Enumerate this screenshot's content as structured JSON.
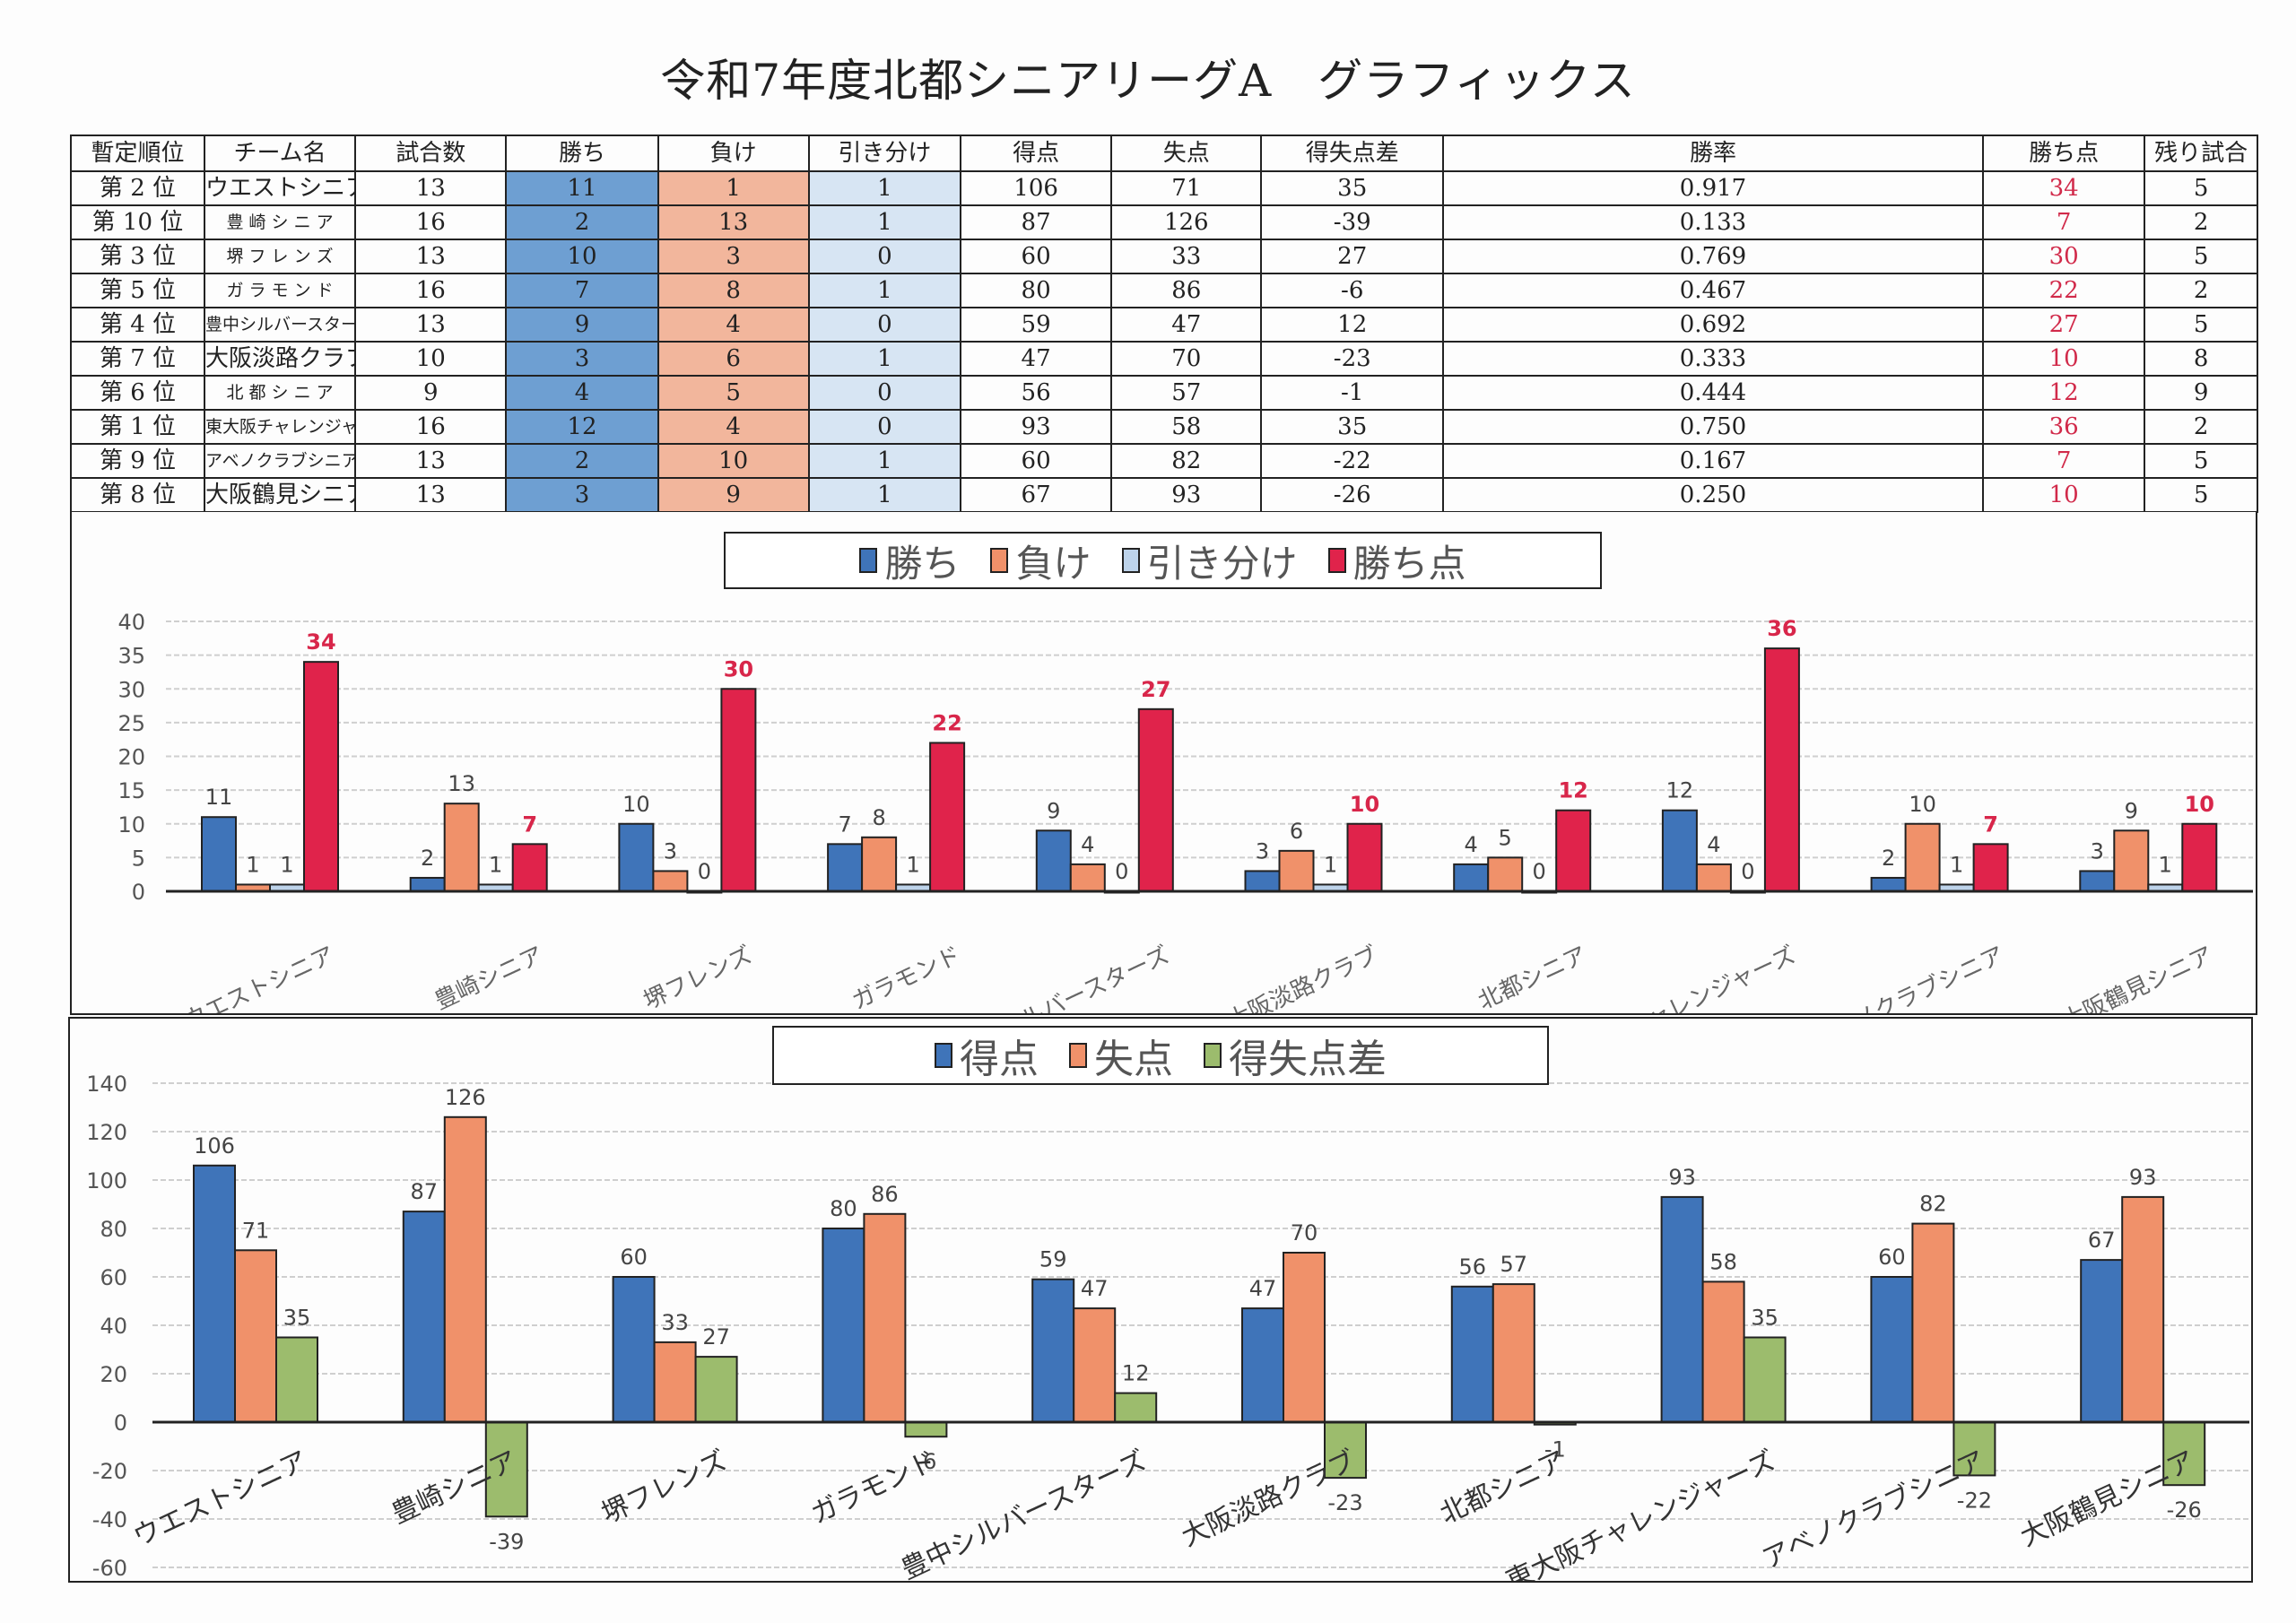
{
  "title": "令和7年度北都シニアリーグA　グラフィックス",
  "table": {
    "headers": [
      "暫定順位",
      "チーム名",
      "試合数",
      "勝ち",
      "負け",
      "引き分け",
      "得点",
      "失点",
      "得失点差",
      "勝率",
      "勝ち点",
      "残り試合"
    ],
    "rows": [
      {
        "rank": "第 2 位",
        "team": "ウエストシニア",
        "games": "13",
        "wins": "11",
        "losses": "1",
        "draws": "1",
        "runs_for": "106",
        "runs_against": "71",
        "diff": "35",
        "pct": "0.917",
        "points": "34",
        "remaining": "5"
      },
      {
        "rank": "第 10 位",
        "team": "豊 崎 シ ニ ア",
        "games": "16",
        "wins": "2",
        "losses": "13",
        "draws": "1",
        "runs_for": "87",
        "runs_against": "126",
        "diff": "-39",
        "pct": "0.133",
        "points": "7",
        "remaining": "2"
      },
      {
        "rank": "第 3 位",
        "team": "堺 フ レ ン ズ",
        "games": "13",
        "wins": "10",
        "losses": "3",
        "draws": "0",
        "runs_for": "60",
        "runs_against": "33",
        "diff": "27",
        "pct": "0.769",
        "points": "30",
        "remaining": "5"
      },
      {
        "rank": "第 5 位",
        "team": "ガ ラ モ ン ド",
        "games": "16",
        "wins": "7",
        "losses": "8",
        "draws": "1",
        "runs_for": "80",
        "runs_against": "86",
        "diff": "-6",
        "pct": "0.467",
        "points": "22",
        "remaining": "2"
      },
      {
        "rank": "第 4 位",
        "team": "豊中シルバースターズ",
        "games": "13",
        "wins": "9",
        "losses": "4",
        "draws": "0",
        "runs_for": "59",
        "runs_against": "47",
        "diff": "12",
        "pct": "0.692",
        "points": "27",
        "remaining": "5"
      },
      {
        "rank": "第 7 位",
        "team": "大阪淡路クラブ",
        "games": "10",
        "wins": "3",
        "losses": "6",
        "draws": "1",
        "runs_for": "47",
        "runs_against": "70",
        "diff": "-23",
        "pct": "0.333",
        "points": "10",
        "remaining": "8"
      },
      {
        "rank": "第 6 位",
        "team": "北 都 シ ニ ア",
        "games": "9",
        "wins": "4",
        "losses": "5",
        "draws": "0",
        "runs_for": "56",
        "runs_against": "57",
        "diff": "-1",
        "pct": "0.444",
        "points": "12",
        "remaining": "9"
      },
      {
        "rank": "第 1 位",
        "team": "東大阪チャレンジャーズ",
        "games": "16",
        "wins": "12",
        "losses": "4",
        "draws": "0",
        "runs_for": "93",
        "runs_against": "58",
        "diff": "35",
        "pct": "0.750",
        "points": "36",
        "remaining": "2"
      },
      {
        "rank": "第 9 位",
        "team": "アベノクラブシニア",
        "games": "13",
        "wins": "2",
        "losses": "10",
        "draws": "1",
        "runs_for": "60",
        "runs_against": "82",
        "diff": "-22",
        "pct": "0.167",
        "points": "7",
        "remaining": "5"
      },
      {
        "rank": "第 8 位",
        "team": "大阪鶴見シニア",
        "games": "13",
        "wins": "3",
        "losses": "9",
        "draws": "1",
        "runs_for": "67",
        "runs_against": "93",
        "diff": "-26",
        "pct": "0.250",
        "points": "10",
        "remaining": "5"
      }
    ]
  },
  "colors": {
    "win": "#3f74b9",
    "loss": "#f0916a",
    "draw": "#bdd3ea",
    "points": "#e0234b",
    "runs_for": "#3f74b9",
    "runs_against": "#f0916a",
    "diff": "#9cbc6d",
    "points_label": "#d8264a"
  },
  "chart_data": [
    {
      "type": "bar",
      "title": "",
      "xlabel": "",
      "ylabel": "",
      "legend": "top-center",
      "grid": true,
      "ylim": [
        0,
        40
      ],
      "yticks": [
        0,
        5,
        10,
        15,
        20,
        25,
        30,
        35,
        40
      ],
      "categories": [
        "ウエストシニア",
        "豊崎シニア",
        "堺フレンズ",
        "ガラモンド",
        "豊中シルバースターズ",
        "大阪淡路クラブ",
        "北都シニア",
        "東大阪チャレンジャーズ",
        "アベノクラブシニア",
        "大阪鶴見シニア"
      ],
      "series": [
        {
          "name": "勝ち",
          "color_key": "win",
          "values": [
            11,
            2,
            10,
            7,
            9,
            3,
            4,
            12,
            2,
            3
          ]
        },
        {
          "name": "負け",
          "color_key": "loss",
          "values": [
            1,
            13,
            3,
            8,
            4,
            6,
            5,
            4,
            10,
            9
          ]
        },
        {
          "name": "引き分け",
          "color_key": "draw",
          "values": [
            1,
            1,
            0,
            1,
            0,
            1,
            0,
            0,
            1,
            1
          ]
        },
        {
          "name": "勝ち点",
          "color_key": "points",
          "values": [
            34,
            7,
            30,
            22,
            27,
            10,
            12,
            36,
            7,
            10
          ]
        }
      ]
    },
    {
      "type": "bar",
      "title": "",
      "xlabel": "",
      "ylabel": "",
      "legend": "top-center",
      "grid": true,
      "ylim": [
        -60,
        140
      ],
      "yticks": [
        -60,
        -40,
        -20,
        0,
        20,
        40,
        60,
        80,
        100,
        120,
        140
      ],
      "categories": [
        "ウエストシニア",
        "豊崎シニア",
        "堺フレンズ",
        "ガラモンド",
        "豊中シルバースターズ",
        "大阪淡路クラブ",
        "北都シニア",
        "東大阪チャレンジャーズ",
        "アベノクラブシニア",
        "大阪鶴見シニア"
      ],
      "series": [
        {
          "name": "得点",
          "color_key": "runs_for",
          "values": [
            106,
            87,
            60,
            80,
            59,
            47,
            56,
            93,
            60,
            67
          ]
        },
        {
          "name": "失点",
          "color_key": "runs_against",
          "values": [
            71,
            126,
            33,
            86,
            47,
            70,
            57,
            58,
            82,
            93
          ]
        },
        {
          "name": "得失点差",
          "color_key": "diff",
          "values": [
            35,
            -39,
            27,
            -6,
            12,
            -23,
            -1,
            35,
            -22,
            -26
          ]
        }
      ]
    }
  ]
}
